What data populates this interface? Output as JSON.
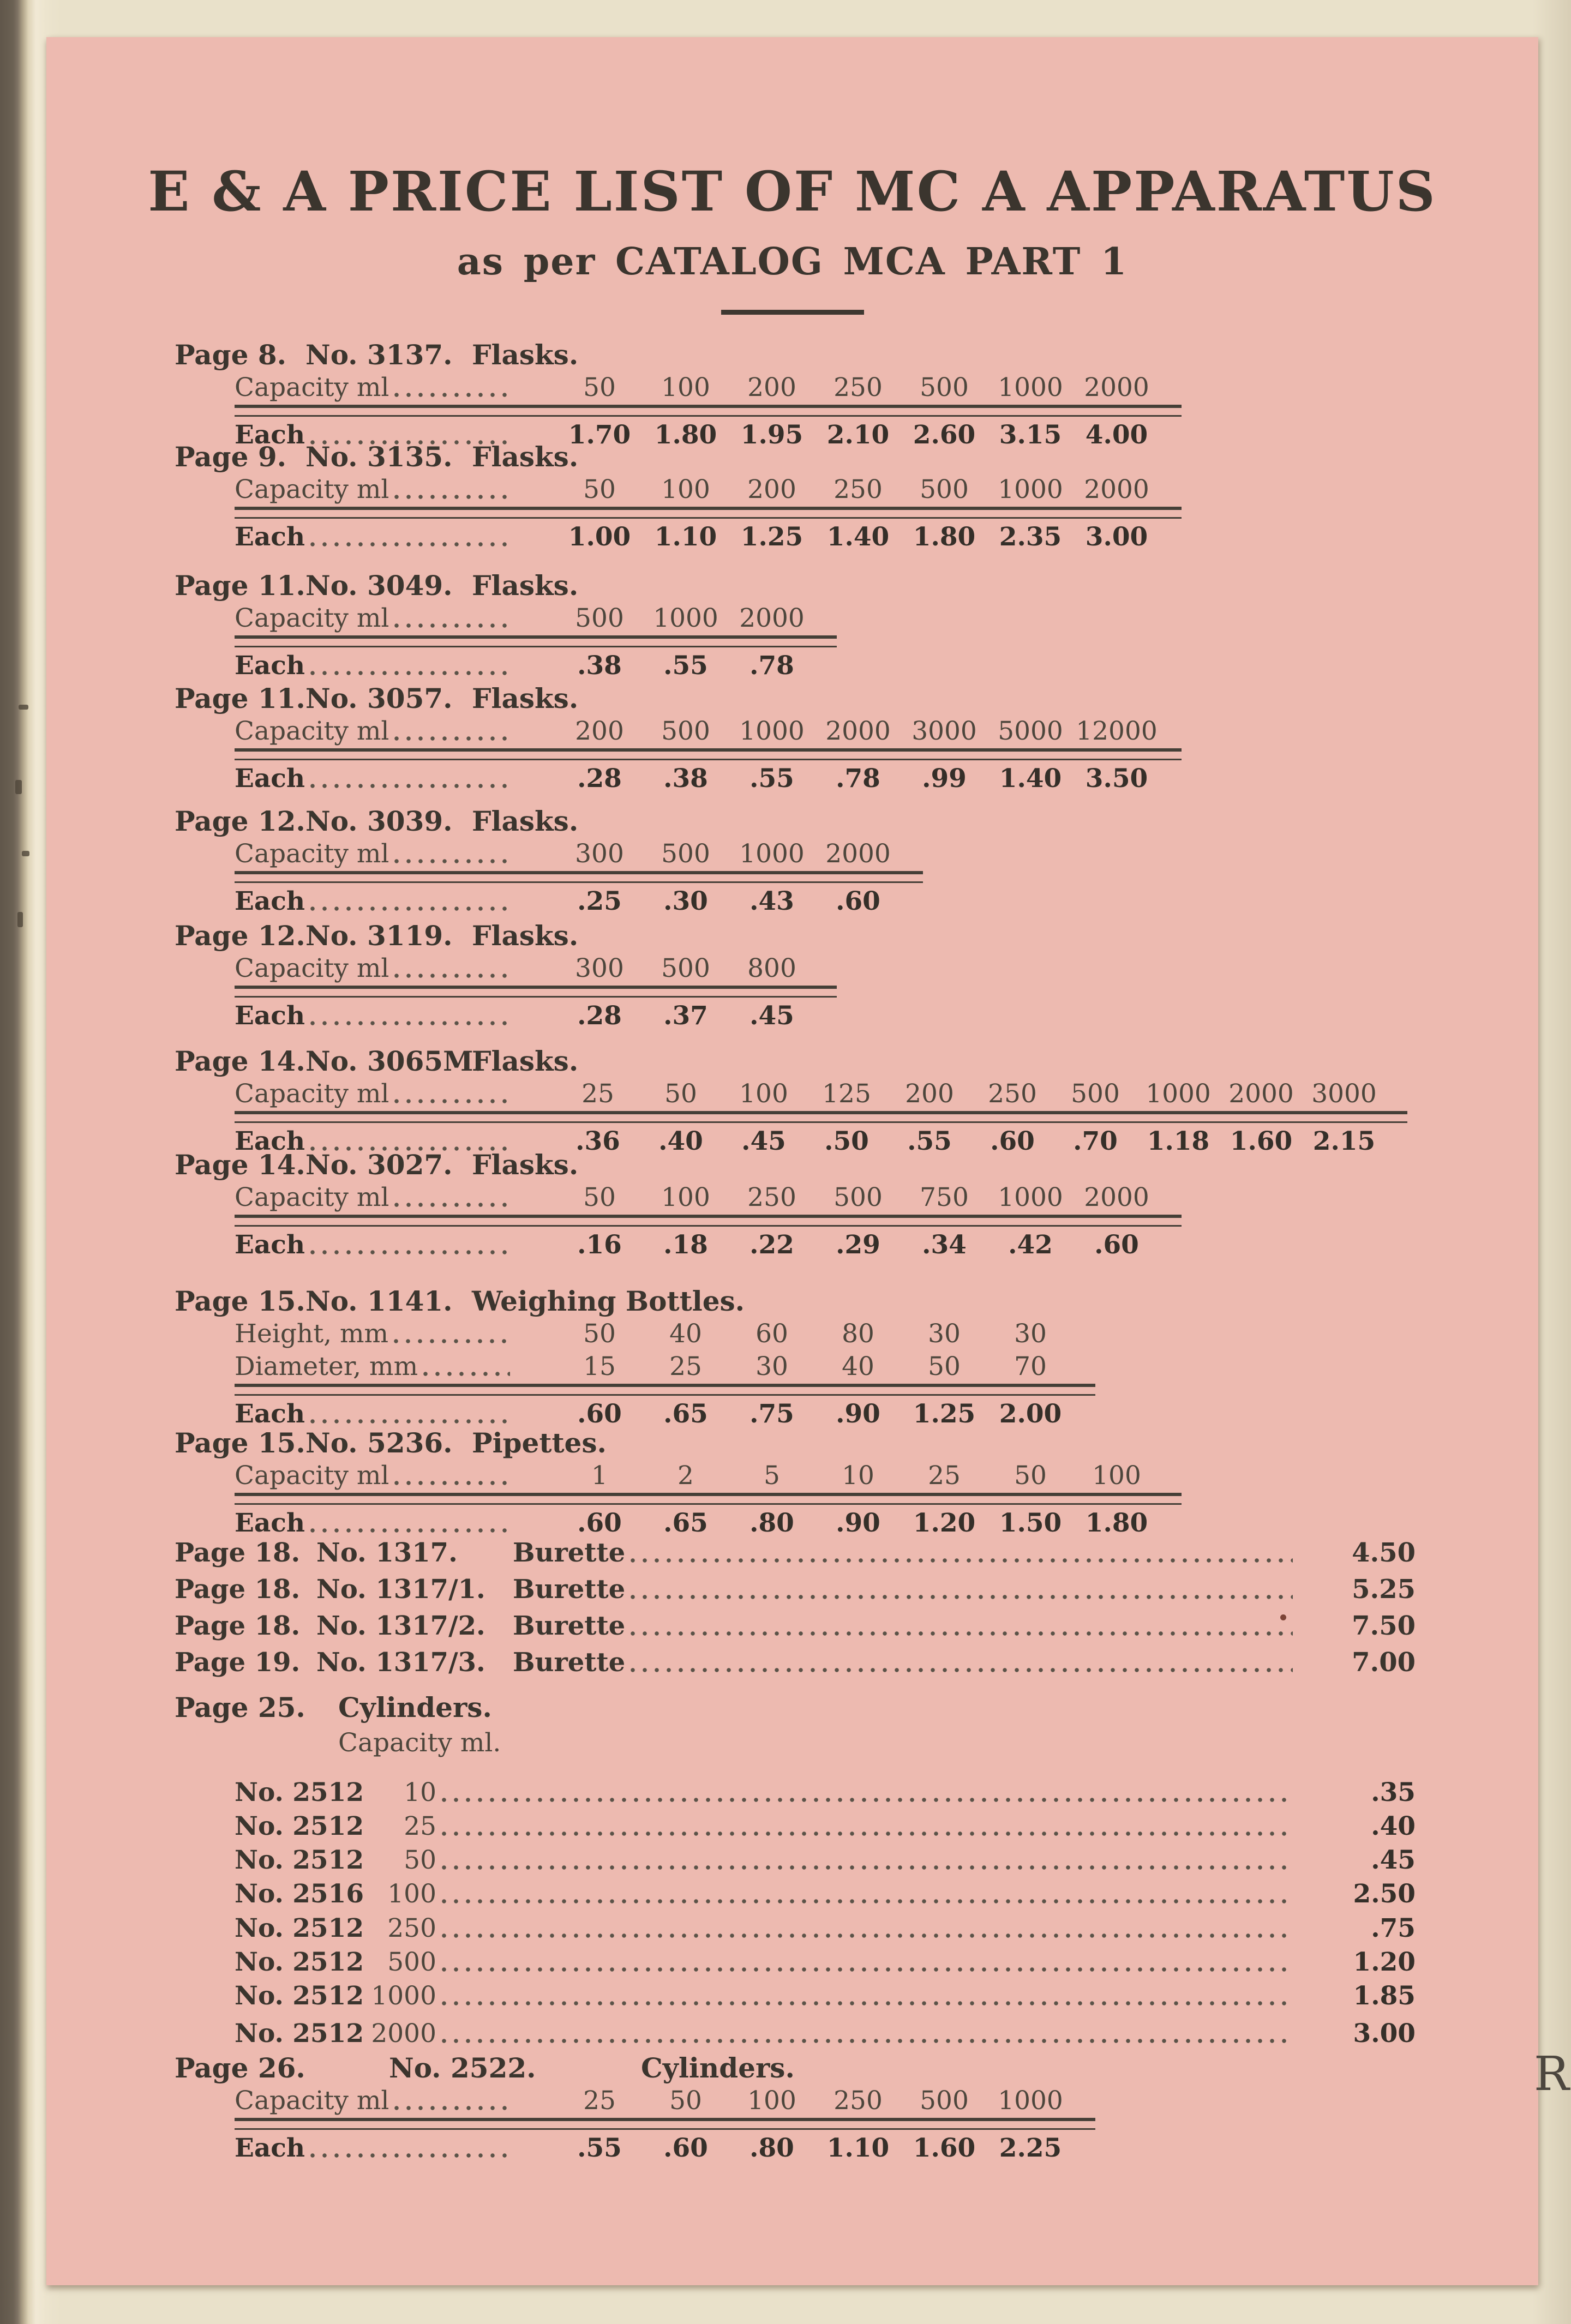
{
  "header": {
    "title": "E & A PRICE LIST OF MC A APPARATUS",
    "subtitle": "as per CATALOG MCA PART 1"
  },
  "margin_letter": "R",
  "colors": {
    "paper_pink": "#edbab0",
    "backing_paper": "#e9e1ca",
    "ink": "#3b352e"
  },
  "price_tables": [
    {
      "page": "Page 8.",
      "no": "No. 3137.",
      "item": "Flasks.",
      "rows": [
        {
          "label": "Capacity ml",
          "values": [
            "50",
            "100",
            "200",
            "250",
            "500",
            "1000",
            "2000"
          ]
        },
        {
          "label": "Each",
          "price": true,
          "values": [
            "1.70",
            "1.80",
            "1.95",
            "2.10",
            "2.60",
            "3.15",
            "4.00"
          ]
        }
      ]
    },
    {
      "page": "Page 9.",
      "no": "No. 3135.",
      "item": "Flasks.",
      "rows": [
        {
          "label": "Capacity ml",
          "values": [
            "50",
            "100",
            "200",
            "250",
            "500",
            "1000",
            "2000"
          ]
        },
        {
          "label": "Each",
          "price": true,
          "values": [
            "1.00",
            "1.10",
            "1.25",
            "1.40",
            "1.80",
            "2.35",
            "3.00"
          ]
        }
      ]
    },
    {
      "page": "Page 11.",
      "no": "No. 3049.",
      "item": "Flasks.",
      "rows": [
        {
          "label": "Capacity ml",
          "values": [
            "500",
            "1000",
            "2000"
          ]
        },
        {
          "label": "Each",
          "price": true,
          "values": [
            ".38",
            ".55",
            ".78"
          ]
        }
      ]
    },
    {
      "page": "Page 11.",
      "no": "No. 3057.",
      "item": "Flasks.",
      "rows": [
        {
          "label": "Capacity ml",
          "values": [
            "200",
            "500",
            "1000",
            "2000",
            "3000",
            "5000",
            "12000"
          ]
        },
        {
          "label": "Each",
          "price": true,
          "values": [
            ".28",
            ".38",
            ".55",
            ".78",
            ".99",
            "1.40",
            "3.50"
          ]
        }
      ]
    },
    {
      "page": "Page 12.",
      "no": "No. 3039.",
      "item": "Flasks.",
      "rows": [
        {
          "label": "Capacity ml",
          "values": [
            "300",
            "500",
            "1000",
            "2000"
          ]
        },
        {
          "label": "Each",
          "price": true,
          "values": [
            ".25",
            ".30",
            ".43",
            ".60"
          ]
        }
      ]
    },
    {
      "page": "Page 12.",
      "no": "No. 3119.",
      "item": "Flasks.",
      "rows": [
        {
          "label": "Capacity ml",
          "values": [
            "300",
            "500",
            "800"
          ]
        },
        {
          "label": "Each",
          "price": true,
          "values": [
            ".28",
            ".37",
            ".45"
          ]
        }
      ]
    },
    {
      "page": "Page 14.",
      "no": "No. 3065M.",
      "item": "Flasks.",
      "rows": [
        {
          "label": "Capacity ml",
          "values": [
            "25",
            "50",
            "100",
            "125",
            "200",
            "250",
            "500",
            "1000",
            "2000",
            "3000"
          ]
        },
        {
          "label": "Each",
          "price": true,
          "values": [
            ".36",
            ".40",
            ".45",
            ".50",
            ".55",
            ".60",
            ".70",
            "1.18",
            "1.60",
            "2.15"
          ]
        }
      ]
    },
    {
      "page": "Page 14.",
      "no": "No. 3027.",
      "item": "Flasks.",
      "rows": [
        {
          "label": "Capacity ml",
          "values": [
            "50",
            "100",
            "250",
            "500",
            "750",
            "1000",
            "2000"
          ]
        },
        {
          "label": "Each",
          "price": true,
          "values": [
            ".16",
            ".18",
            ".22",
            ".29",
            ".34",
            ".42",
            ".60"
          ]
        }
      ]
    },
    {
      "page": "Page 15.",
      "no": "No. 1141.",
      "item": "Weighing Bottles.",
      "rows": [
        {
          "label": "Height, mm",
          "values": [
            "50",
            "40",
            "60",
            "80",
            "30",
            "30"
          ]
        },
        {
          "label": "Diameter, mm",
          "values": [
            "15",
            "25",
            "30",
            "40",
            "50",
            "70"
          ]
        },
        {
          "label": "Each",
          "price": true,
          "values": [
            ".60",
            ".65",
            ".75",
            ".90",
            "1.25",
            "2.00"
          ]
        }
      ]
    },
    {
      "page": "Page 15.",
      "no": "No. 5236.",
      "item": "Pipettes.",
      "rows": [
        {
          "label": "Capacity ml",
          "values": [
            "1",
            "2",
            "5",
            "10",
            "25",
            "50",
            "100"
          ]
        },
        {
          "label": "Each",
          "price": true,
          "values": [
            ".60",
            ".65",
            ".80",
            ".90",
            "1.20",
            "1.50",
            "1.80"
          ]
        }
      ]
    },
    {
      "page": "Page 26.",
      "no": "No. 2522.",
      "item": "Cylinders.",
      "wide_header": true,
      "rows": [
        {
          "label": "Capacity ml",
          "values": [
            "25",
            "50",
            "100",
            "250",
            "500",
            "1000"
          ]
        },
        {
          "label": "Each",
          "price": true,
          "values": [
            ".55",
            ".60",
            ".80",
            "1.10",
            "1.60",
            "2.25"
          ]
        }
      ]
    }
  ],
  "burettes": [
    {
      "page": "Page 18.",
      "no": "No. 1317.",
      "item": "Burette",
      "price": "4.50"
    },
    {
      "page": "Page 18.",
      "no": "No. 1317/1.",
      "item": "Burette",
      "price": "5.25"
    },
    {
      "page": "Page 18.",
      "no": "No. 1317/2.",
      "item": "Burette",
      "price": "7.50"
    },
    {
      "page": "Page 19.",
      "no": "No. 1317/3.",
      "item": "Burette",
      "price": "7.00"
    }
  ],
  "cylinder_list": {
    "page": "Page 25.",
    "item": "Cylinders.",
    "capacity_label": "Capacity ml.",
    "rows": [
      {
        "no": "No. 2512",
        "capacity": "10",
        "price": ".35"
      },
      {
        "no": "No. 2512",
        "capacity": "25",
        "price": ".40"
      },
      {
        "no": "No. 2512",
        "capacity": "50",
        "price": ".45"
      },
      {
        "no": "No. 2516",
        "capacity": "100",
        "price": "2.50"
      },
      {
        "no": "No. 2512",
        "capacity": "250",
        "price": ".75"
      },
      {
        "no": "No. 2512",
        "capacity": "500",
        "price": "1.20"
      },
      {
        "no": "No. 2512",
        "capacity": "1000",
        "price": "1.85"
      },
      {
        "no": "No. 2512",
        "capacity": "2000",
        "price": "3.00"
      }
    ]
  }
}
